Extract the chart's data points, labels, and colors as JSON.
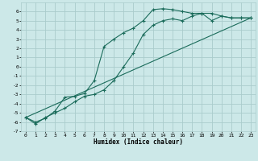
{
  "xlabel": "Humidex (Indice chaleur)",
  "bg_color": "#cce8e8",
  "grid_color": "#aacccc",
  "line_color": "#1a6b5a",
  "xlim": [
    -0.5,
    23.5
  ],
  "ylim": [
    -7,
    7
  ],
  "yticks": [
    -7,
    -6,
    -5,
    -4,
    -3,
    -2,
    -1,
    0,
    1,
    2,
    3,
    4,
    5,
    6
  ],
  "xticks": [
    0,
    1,
    2,
    3,
    4,
    5,
    6,
    7,
    8,
    9,
    10,
    11,
    12,
    13,
    14,
    15,
    16,
    17,
    18,
    19,
    20,
    21,
    22,
    23
  ],
  "line1_x": [
    0,
    1,
    2,
    3,
    4,
    5,
    6,
    7,
    8,
    9,
    10,
    11,
    12,
    13,
    14,
    15,
    16,
    17,
    18,
    19,
    20,
    21,
    22,
    23
  ],
  "line1_y": [
    -5.5,
    -6.0,
    -5.6,
    -4.8,
    -3.3,
    -3.2,
    -2.9,
    -1.5,
    2.2,
    3.0,
    3.7,
    4.2,
    5.0,
    6.2,
    6.3,
    6.2,
    6.0,
    5.8,
    5.8,
    5.8,
    5.5,
    5.3,
    5.3,
    5.3
  ],
  "line2_x": [
    0,
    1,
    2,
    3,
    4,
    5,
    6,
    7,
    8,
    9,
    10,
    11,
    12,
    13,
    14,
    15,
    16,
    17,
    18,
    19,
    20,
    21,
    22,
    23
  ],
  "line2_y": [
    -5.5,
    -6.2,
    -5.5,
    -5.0,
    -4.5,
    -3.8,
    -3.2,
    -3.0,
    -2.5,
    -1.5,
    0.0,
    1.5,
    3.5,
    4.5,
    5.0,
    5.2,
    5.0,
    5.5,
    5.8,
    5.0,
    5.5,
    5.3,
    5.3,
    5.3
  ],
  "line3_x": [
    0,
    23
  ],
  "line3_y": [
    -5.5,
    5.3
  ]
}
